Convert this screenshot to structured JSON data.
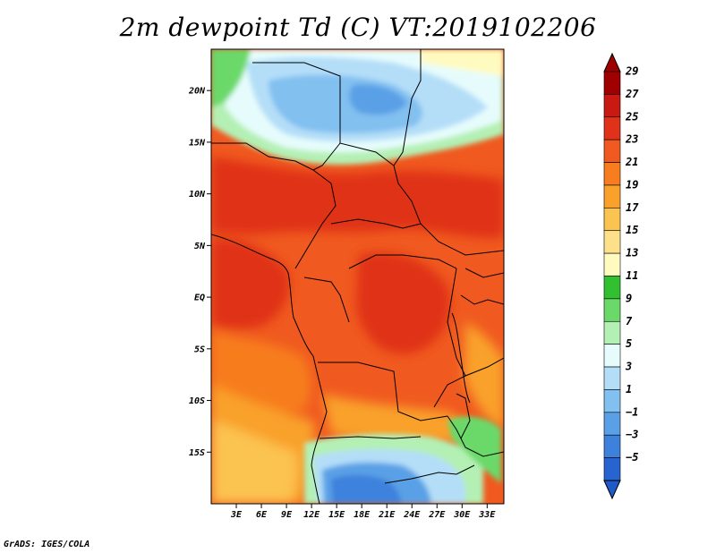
{
  "title": "2m dewpoint Td (C) VT:2019102206",
  "credit": "GrADS: IGES/COLA",
  "map": {
    "extent": {
      "lon_min": 0,
      "lon_max": 35,
      "lat_min": -20,
      "lat_max": 24
    },
    "lat_labels": [
      {
        "value": 20,
        "text": "20N"
      },
      {
        "value": 15,
        "text": "15N"
      },
      {
        "value": 10,
        "text": "10N"
      },
      {
        "value": 5,
        "text": "5N"
      },
      {
        "value": 0,
        "text": "EQ"
      },
      {
        "value": -5,
        "text": "5S"
      },
      {
        "value": -10,
        "text": "10S"
      },
      {
        "value": -15,
        "text": "15S"
      }
    ],
    "lon_labels": [
      {
        "value": 3,
        "text": "3E"
      },
      {
        "value": 6,
        "text": "6E"
      },
      {
        "value": 9,
        "text": "9E"
      },
      {
        "value": 12,
        "text": "12E"
      },
      {
        "value": 15,
        "text": "15E"
      },
      {
        "value": 18,
        "text": "18E"
      },
      {
        "value": 21,
        "text": "21E"
      },
      {
        "value": 24,
        "text": "24E"
      },
      {
        "value": 27,
        "text": "27E"
      },
      {
        "value": 30,
        "text": "30E"
      },
      {
        "value": 33,
        "text": "33E"
      }
    ]
  },
  "colorbar": {
    "levels": [
      {
        "label": "29",
        "color": "#a00000"
      },
      {
        "label": "27",
        "color": "#c81a12"
      },
      {
        "label": "25",
        "color": "#e03218"
      },
      {
        "label": "23",
        "color": "#f05a20"
      },
      {
        "label": "21",
        "color": "#f77d1e"
      },
      {
        "label": "19",
        "color": "#f9a12a"
      },
      {
        "label": "17",
        "color": "#fbc350"
      },
      {
        "label": "15",
        "color": "#fde08a"
      },
      {
        "label": "13",
        "color": "#fffac0"
      },
      {
        "label": "11",
        "color": "#30c030"
      },
      {
        "label": "9",
        "color": "#6ad96a"
      },
      {
        "label": "7",
        "color": "#b4f0b4"
      },
      {
        "label": "5",
        "color": "#e6fcfc"
      },
      {
        "label": "3",
        "color": "#b4def8"
      },
      {
        "label": "1",
        "color": "#82c0f0"
      },
      {
        "label": "−1",
        "color": "#5aa0e6"
      },
      {
        "label": "−3",
        "color": "#3c82dc"
      },
      {
        "label": "−5",
        "color": "#2864d0"
      }
    ],
    "top_arrow_color": "#a00000",
    "bottom_arrow_color": "#1e5ac8"
  }
}
